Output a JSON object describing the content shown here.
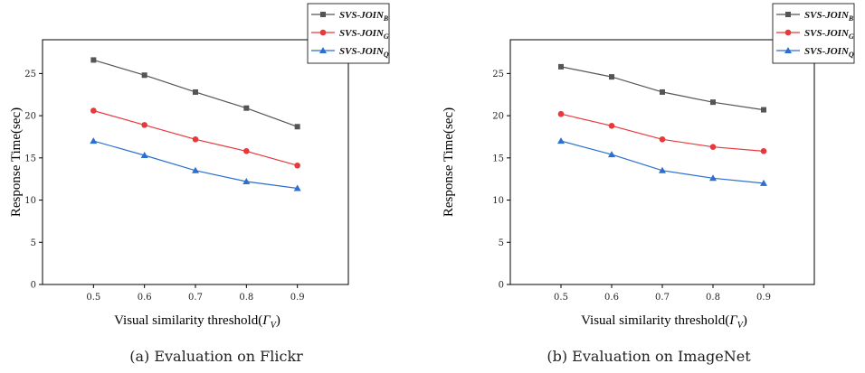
{
  "chart_data": [
    {
      "type": "line",
      "caption": "(a) Evaluation on Flickr",
      "xlabel": "Visual similarity threshold(",
      "xlabel_symbol": "Γ",
      "xlabel_sub": "V",
      "xlabel_close": ")",
      "ylabel": "Response Time(sec)",
      "x": [
        0.5,
        0.6,
        0.7,
        0.8,
        0.9
      ],
      "x_tick_labels": [
        "0.5",
        "0.6",
        "0.7",
        "0.8",
        "0.9"
      ],
      "xlim": [
        0.4,
        1.0
      ],
      "ylim": [
        0,
        29
      ],
      "y_ticks": [
        0,
        5,
        10,
        15,
        20,
        25
      ],
      "series": [
        {
          "name": "SVS-JOIN",
          "sub": "B",
          "color": "#555555",
          "marker": "square",
          "values": [
            26.6,
            24.8,
            22.8,
            20.9,
            18.7
          ]
        },
        {
          "name": "SVS-JOIN",
          "sub": "G",
          "color": "#e8383b",
          "marker": "circle",
          "values": [
            20.6,
            18.9,
            17.2,
            15.8,
            14.1
          ]
        },
        {
          "name": "SVS-JOIN",
          "sub": "Q",
          "color": "#2b6fd1",
          "marker": "triangle",
          "values": [
            17.0,
            15.3,
            13.5,
            12.2,
            11.4
          ]
        }
      ],
      "legend": "top-right"
    },
    {
      "type": "line",
      "caption": "(b) Evaluation on ImageNet",
      "xlabel": "Visual similarity threshold(",
      "xlabel_symbol": "Γ",
      "xlabel_sub": "V",
      "xlabel_close": ")",
      "ylabel": "Response Time(sec)",
      "x": [
        0.5,
        0.6,
        0.7,
        0.8,
        0.9
      ],
      "x_tick_labels": [
        "0.5",
        "0.6",
        "0.7",
        "0.8",
        "0.9"
      ],
      "xlim": [
        0.4,
        1.0
      ],
      "ylim": [
        0,
        29
      ],
      "y_ticks": [
        0,
        5,
        10,
        15,
        20,
        25
      ],
      "series": [
        {
          "name": "SVS-JOIN",
          "sub": "B",
          "color": "#555555",
          "marker": "square",
          "values": [
            25.8,
            24.6,
            22.8,
            21.6,
            20.7
          ]
        },
        {
          "name": "SVS-JOIN",
          "sub": "G",
          "color": "#e8383b",
          "marker": "circle",
          "values": [
            20.2,
            18.8,
            17.2,
            16.3,
            15.8
          ]
        },
        {
          "name": "SVS-JOIN",
          "sub": "Q",
          "color": "#2b6fd1",
          "marker": "triangle",
          "values": [
            17.0,
            15.4,
            13.5,
            12.6,
            12.0
          ]
        }
      ],
      "legend": "top-right"
    }
  ]
}
